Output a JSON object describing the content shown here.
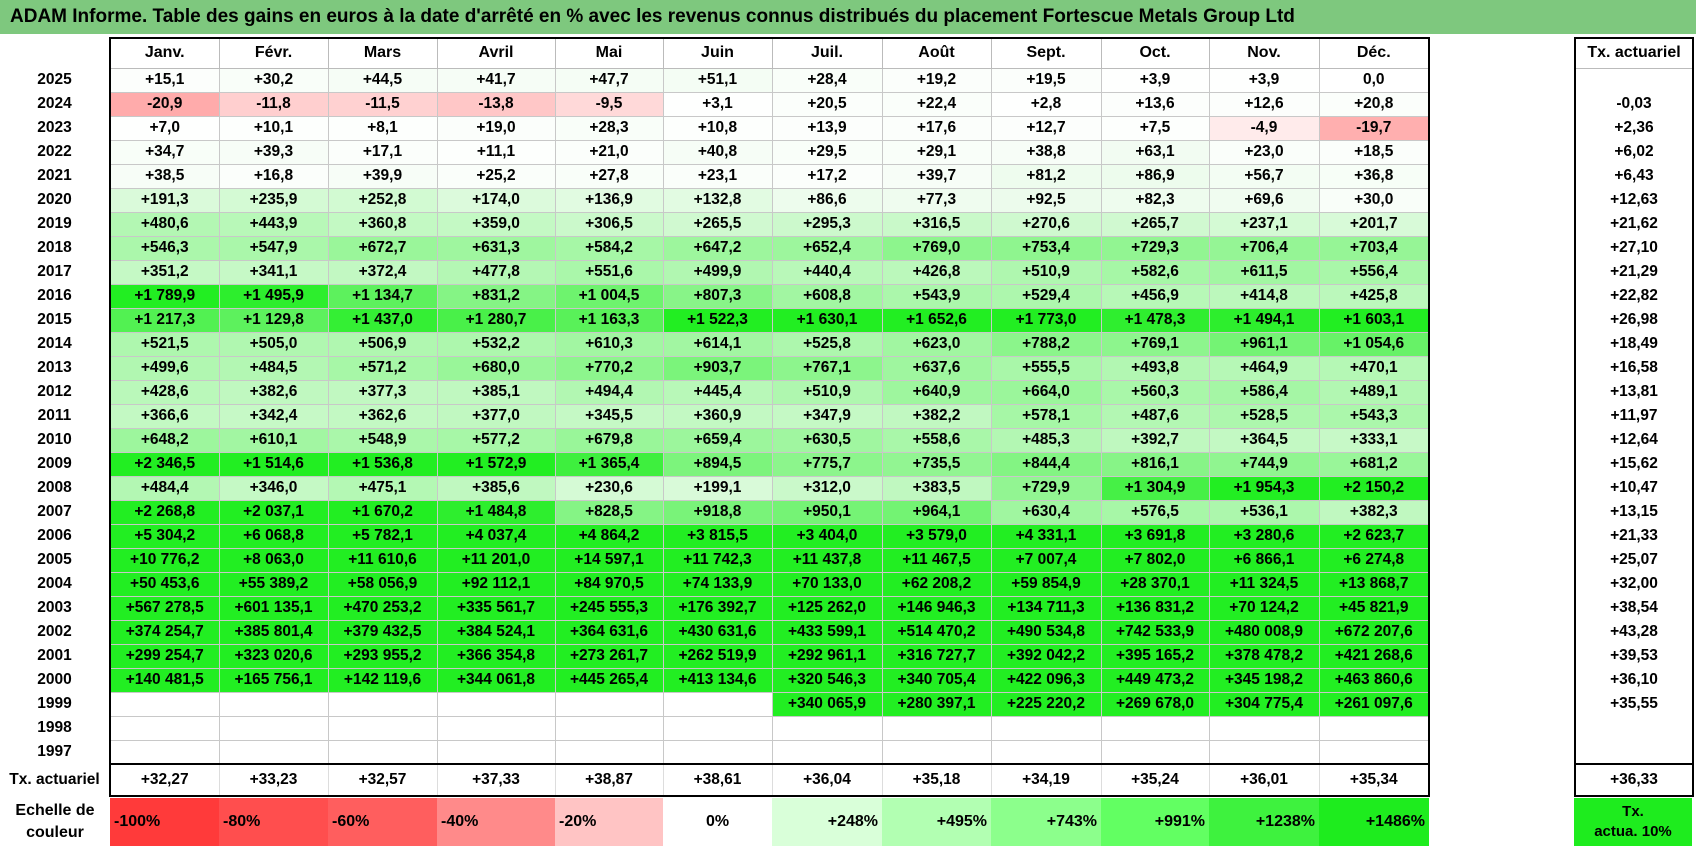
{
  "title": "ADAM Informe. Table des gains en euros à la date d'arrêté en % avec les revenus connus distribués du placement Fortescue Metals Group Ltd",
  "months": [
    "Janv.",
    "Févr.",
    "Mars",
    "Avril",
    "Mai",
    "Juin",
    "Juil.",
    "Août",
    "Sept.",
    "Oct.",
    "Nov.",
    "Déc."
  ],
  "side_header": "Tx. actuariel",
  "rows": [
    {
      "year": "2025",
      "values": [
        "+15,1",
        "+30,2",
        "+44,5",
        "+41,7",
        "+47,7",
        "+51,1",
        "+28,4",
        "+19,2",
        "+19,5",
        "+3,9",
        "+3,9",
        "0,0"
      ],
      "rate": ""
    },
    {
      "year": "2024",
      "values": [
        "-20,9",
        "-11,8",
        "-11,5",
        "-13,8",
        "-9,5",
        "+3,1",
        "+20,5",
        "+22,4",
        "+2,8",
        "+13,6",
        "+12,6",
        "+20,8"
      ],
      "rate": "-0,03"
    },
    {
      "year": "2023",
      "values": [
        "+7,0",
        "+10,1",
        "+8,1",
        "+19,0",
        "+28,3",
        "+10,8",
        "+13,9",
        "+17,6",
        "+12,7",
        "+7,5",
        "-4,9",
        "-19,7"
      ],
      "rate": "+2,36"
    },
    {
      "year": "2022",
      "values": [
        "+34,7",
        "+39,3",
        "+17,1",
        "+11,1",
        "+21,0",
        "+40,8",
        "+29,5",
        "+29,1",
        "+38,8",
        "+63,1",
        "+23,0",
        "+18,5"
      ],
      "rate": "+6,02"
    },
    {
      "year": "2021",
      "values": [
        "+38,5",
        "+16,8",
        "+39,9",
        "+25,2",
        "+27,8",
        "+23,1",
        "+17,2",
        "+39,7",
        "+81,2",
        "+86,9",
        "+56,7",
        "+36,8"
      ],
      "rate": "+6,43"
    },
    {
      "year": "2020",
      "values": [
        "+191,3",
        "+235,9",
        "+252,8",
        "+174,0",
        "+136,9",
        "+132,8",
        "+86,6",
        "+77,3",
        "+92,5",
        "+82,3",
        "+69,6",
        "+30,0"
      ],
      "rate": "+12,63"
    },
    {
      "year": "2019",
      "values": [
        "+480,6",
        "+443,9",
        "+360,8",
        "+359,0",
        "+306,5",
        "+265,5",
        "+295,3",
        "+316,5",
        "+270,6",
        "+265,7",
        "+237,1",
        "+201,7"
      ],
      "rate": "+21,62"
    },
    {
      "year": "2018",
      "values": [
        "+546,3",
        "+547,9",
        "+672,7",
        "+631,3",
        "+584,2",
        "+647,2",
        "+652,4",
        "+769,0",
        "+753,4",
        "+729,3",
        "+706,4",
        "+703,4"
      ],
      "rate": "+27,10"
    },
    {
      "year": "2017",
      "values": [
        "+351,2",
        "+341,1",
        "+372,4",
        "+477,8",
        "+551,6",
        "+499,9",
        "+440,4",
        "+426,8",
        "+510,9",
        "+582,6",
        "+611,5",
        "+556,4"
      ],
      "rate": "+21,29"
    },
    {
      "year": "2016",
      "values": [
        "+1 789,9",
        "+1 495,9",
        "+1 134,7",
        "+831,2",
        "+1 004,5",
        "+807,3",
        "+608,8",
        "+543,9",
        "+529,4",
        "+456,9",
        "+414,8",
        "+425,8"
      ],
      "rate": "+22,82"
    },
    {
      "year": "2015",
      "values": [
        "+1 217,3",
        "+1 129,8",
        "+1 437,0",
        "+1 280,7",
        "+1 163,3",
        "+1 522,3",
        "+1 630,1",
        "+1 652,6",
        "+1 773,0",
        "+1 478,3",
        "+1 494,1",
        "+1 603,1"
      ],
      "rate": "+26,98"
    },
    {
      "year": "2014",
      "values": [
        "+521,5",
        "+505,0",
        "+506,9",
        "+532,2",
        "+610,3",
        "+614,1",
        "+525,8",
        "+623,0",
        "+788,2",
        "+769,1",
        "+961,1",
        "+1 054,6"
      ],
      "rate": "+18,49"
    },
    {
      "year": "2013",
      "values": [
        "+499,6",
        "+484,5",
        "+571,2",
        "+680,0",
        "+770,2",
        "+903,7",
        "+767,1",
        "+637,6",
        "+555,5",
        "+493,8",
        "+464,9",
        "+470,1"
      ],
      "rate": "+16,58"
    },
    {
      "year": "2012",
      "values": [
        "+428,6",
        "+382,6",
        "+377,3",
        "+385,1",
        "+494,4",
        "+445,4",
        "+510,9",
        "+640,9",
        "+664,0",
        "+560,3",
        "+586,4",
        "+489,1"
      ],
      "rate": "+13,81"
    },
    {
      "year": "2011",
      "values": [
        "+366,6",
        "+342,4",
        "+362,6",
        "+377,0",
        "+345,5",
        "+360,9",
        "+347,9",
        "+382,2",
        "+578,1",
        "+487,6",
        "+528,5",
        "+543,3"
      ],
      "rate": "+11,97"
    },
    {
      "year": "2010",
      "values": [
        "+648,2",
        "+610,1",
        "+548,9",
        "+577,2",
        "+679,8",
        "+659,4",
        "+630,5",
        "+558,6",
        "+485,3",
        "+392,7",
        "+364,5",
        "+333,1"
      ],
      "rate": "+12,64"
    },
    {
      "year": "2009",
      "values": [
        "+2 346,5",
        "+1 514,6",
        "+1 536,8",
        "+1 572,9",
        "+1 365,4",
        "+894,5",
        "+775,7",
        "+735,5",
        "+844,4",
        "+816,1",
        "+744,9",
        "+681,2"
      ],
      "rate": "+15,62"
    },
    {
      "year": "2008",
      "values": [
        "+484,4",
        "+346,0",
        "+475,1",
        "+385,6",
        "+230,6",
        "+199,1",
        "+312,0",
        "+383,5",
        "+729,9",
        "+1 304,9",
        "+1 954,3",
        "+2 150,2"
      ],
      "rate": "+10,47"
    },
    {
      "year": "2007",
      "values": [
        "+2 268,8",
        "+2 037,1",
        "+1 670,2",
        "+1 484,8",
        "+828,5",
        "+918,8",
        "+950,1",
        "+964,1",
        "+630,4",
        "+576,5",
        "+536,1",
        "+382,3"
      ],
      "rate": "+13,15"
    },
    {
      "year": "2006",
      "values": [
        "+5 304,2",
        "+6 068,8",
        "+5 782,1",
        "+4 037,4",
        "+4 864,2",
        "+3 815,5",
        "+3 404,0",
        "+3 579,0",
        "+4 331,1",
        "+3 691,8",
        "+3 280,6",
        "+2 623,7"
      ],
      "rate": "+21,33"
    },
    {
      "year": "2005",
      "values": [
        "+10 776,2",
        "+8 063,0",
        "+11 610,6",
        "+11 201,0",
        "+14 597,1",
        "+11 742,3",
        "+11 437,8",
        "+11 467,5",
        "+7 007,4",
        "+7 802,0",
        "+6 866,1",
        "+6 274,8"
      ],
      "rate": "+25,07"
    },
    {
      "year": "2004",
      "values": [
        "+50 453,6",
        "+55 389,2",
        "+58 056,9",
        "+92 112,1",
        "+84 970,5",
        "+74 133,9",
        "+70 133,0",
        "+62 208,2",
        "+59 854,9",
        "+28 370,1",
        "+11 324,5",
        "+13 868,7"
      ],
      "rate": "+32,00"
    },
    {
      "year": "2003",
      "values": [
        "+567 278,5",
        "+601 135,1",
        "+470 253,2",
        "+335 561,7",
        "+245 555,3",
        "+176 392,7",
        "+125 262,0",
        "+146 946,3",
        "+134 711,3",
        "+136 831,2",
        "+70 124,2",
        "+45 821,9"
      ],
      "rate": "+38,54"
    },
    {
      "year": "2002",
      "values": [
        "+374 254,7",
        "+385 801,4",
        "+379 432,5",
        "+384 524,1",
        "+364 631,6",
        "+430 631,6",
        "+433 599,1",
        "+514 470,2",
        "+490 534,8",
        "+742 533,9",
        "+480 008,9",
        "+672 207,6"
      ],
      "rate": "+43,28"
    },
    {
      "year": "2001",
      "values": [
        "+299 254,7",
        "+323 020,6",
        "+293 955,2",
        "+366 354,8",
        "+273 261,7",
        "+262 519,9",
        "+292 961,1",
        "+316 727,7",
        "+392 042,2",
        "+395 165,2",
        "+378 478,2",
        "+421 268,6"
      ],
      "rate": "+39,53"
    },
    {
      "year": "2000",
      "values": [
        "+140 481,5",
        "+165 756,1",
        "+142 119,6",
        "+344 061,8",
        "+445 265,4",
        "+413 134,6",
        "+320 546,3",
        "+340 705,4",
        "+422 096,3",
        "+449 473,2",
        "+345 198,2",
        "+463 860,6"
      ],
      "rate": "+36,10"
    },
    {
      "year": "1999",
      "values": [
        "",
        "",
        "",
        "",
        "",
        "",
        "+340 065,9",
        "+280 397,1",
        "+225 220,2",
        "+269 678,0",
        "+304 775,4",
        "+261 097,6"
      ],
      "rate": "+35,55"
    },
    {
      "year": "1998",
      "values": [
        "",
        "",
        "",
        "",
        "",
        "",
        "",
        "",
        "",
        "",
        "",
        ""
      ],
      "rate": ""
    },
    {
      "year": "1997",
      "values": [
        "",
        "",
        "",
        "",
        "",
        "",
        "",
        "",
        "",
        "",
        "",
        ""
      ],
      "rate": ""
    }
  ],
  "footer": {
    "label": "Tx. actuariel",
    "values": [
      "+32,27",
      "+33,23",
      "+32,57",
      "+37,33",
      "+38,87",
      "+38,61",
      "+36,04",
      "+35,18",
      "+34,19",
      "+35,24",
      "+36,01",
      "+35,34"
    ],
    "total": "+36,33"
  },
  "legend": {
    "label_line1": "Echelle de",
    "label_line2": "couleur",
    "items": [
      {
        "text": "-100%",
        "color": "#ff3a3a",
        "align": "left"
      },
      {
        "text": "-80%",
        "color": "#ff4e4e",
        "align": "left"
      },
      {
        "text": "-60%",
        "color": "#ff5e5e",
        "align": "left"
      },
      {
        "text": "-40%",
        "color": "#ff8a8a",
        "align": "left"
      },
      {
        "text": "-20%",
        "color": "#ffc4c4",
        "align": "left"
      },
      {
        "text": "0%",
        "color": "#ffffff",
        "align": "center"
      },
      {
        "text": "+248%",
        "color": "#d9ffd9",
        "align": "right"
      },
      {
        "text": "+495%",
        "color": "#b2ffb2",
        "align": "right"
      },
      {
        "text": "+743%",
        "color": "#8cff8c",
        "align": "right"
      },
      {
        "text": "+991%",
        "color": "#62ff62",
        "align": "right"
      },
      {
        "text": "+1238%",
        "color": "#3ef23e",
        "align": "right"
      },
      {
        "text": "+1486%",
        "color": "#1eec1e",
        "align": "right"
      }
    ],
    "tx_line1": "Tx.",
    "tx_line2": "actua. 10%",
    "tx_color": "#1eec1e"
  }
}
